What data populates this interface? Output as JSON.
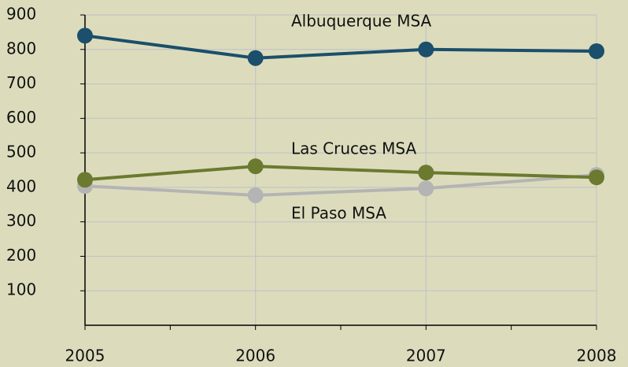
{
  "chart_data": {
    "type": "line",
    "categories": [
      "2005",
      "2006",
      "2007",
      "2008"
    ],
    "series": [
      {
        "name": "Albuquerque MSA",
        "color": "#1b4f6b",
        "values": [
          840,
          775,
          800,
          795
        ]
      },
      {
        "name": "Las Cruces MSA",
        "color": "#6b7a2e",
        "values": [
          422,
          461,
          443,
          429
        ]
      },
      {
        "name": "El Paso MSA",
        "color": "#b4b4b4",
        "values": [
          404,
          377,
          397,
          436
        ]
      }
    ],
    "ylim": [
      0,
      900
    ],
    "yticks": [
      100,
      200,
      300,
      400,
      500,
      600,
      700,
      800,
      900
    ],
    "grid": true
  }
}
